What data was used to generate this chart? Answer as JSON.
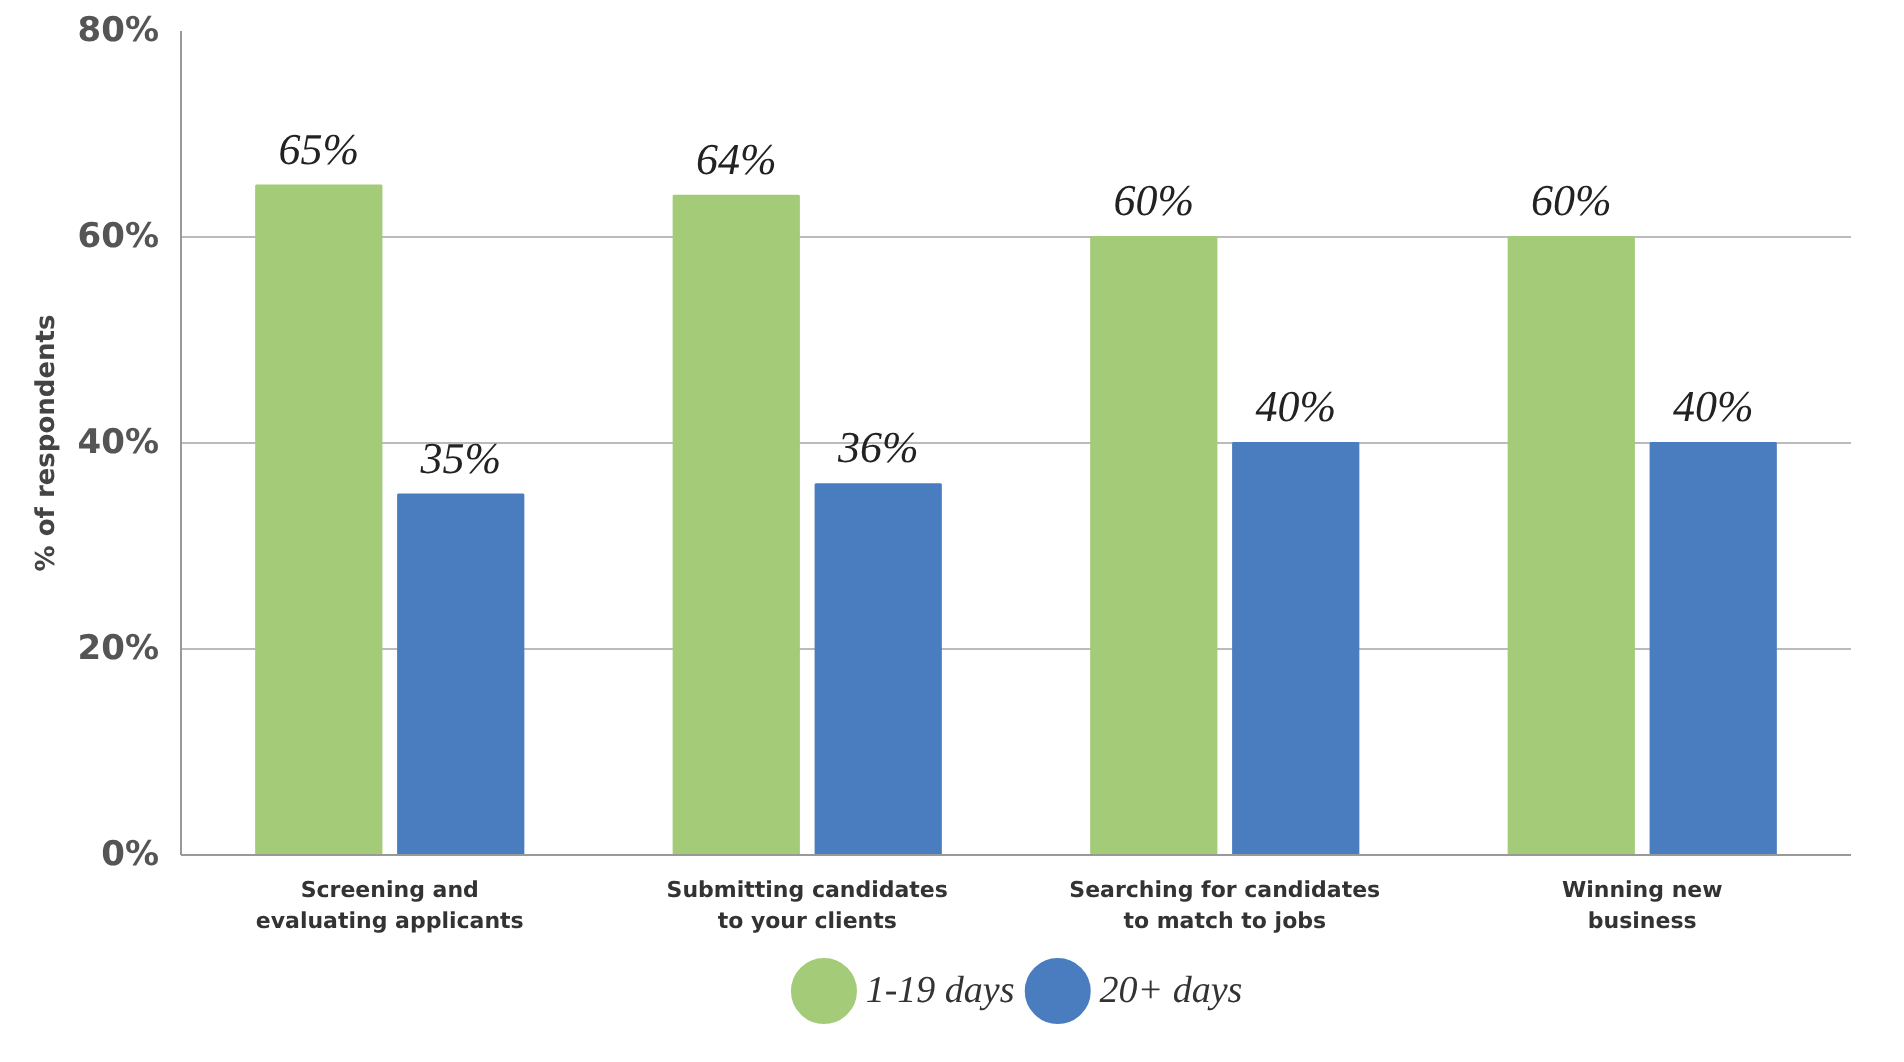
{
  "chart_data": {
    "type": "bar",
    "ylabel": "% of respondents",
    "categories": [
      "Screening and\nevaluating applicants",
      "Submitting candidates\nto your clients",
      "Searching for candidates\nto match to jobs",
      "Winning new\nbusiness"
    ],
    "series": [
      {
        "name": "1-19 days",
        "color": "#a3cb78",
        "values": [
          65,
          64,
          60,
          60
        ],
        "value_labels": [
          "65%",
          "64%",
          "60%",
          "60%"
        ]
      },
      {
        "name": "20+ days",
        "color": "#4a7dbf",
        "values": [
          35,
          36,
          40,
          40
        ],
        "value_labels": [
          "35%",
          "36%",
          "40%",
          "40%"
        ]
      }
    ],
    "ylim": [
      0,
      80
    ],
    "yticks": [
      {
        "value": 0,
        "label": "0%"
      },
      {
        "value": 20,
        "label": "20%"
      },
      {
        "value": 40,
        "label": "40%"
      },
      {
        "value": 60,
        "label": "60%"
      },
      {
        "value": 80,
        "label": "80%"
      }
    ],
    "grid": "y",
    "legend": "bottom",
    "marker": "circle"
  }
}
